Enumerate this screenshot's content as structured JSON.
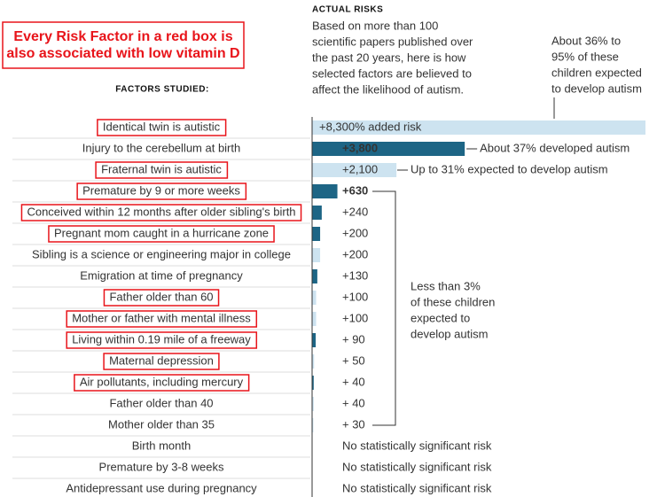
{
  "chart_data": {
    "type": "bar",
    "callout": [
      "Every Risk Factor in a red box is",
      "also associated with low vitamin D"
    ],
    "header": "ACTUAL RISKS",
    "description": [
      "Based on more than 100",
      "scientific papers published over",
      "the past 20 years, here is how",
      "selected factors are believed to",
      "affect the likelihood of autism."
    ],
    "category_header": "FACTORS STUDIED:",
    "categories": [
      "Identical twin is autistic",
      "Injury to the cerebellum at birth",
      "Fraternal twin is autistic",
      "Premature by 9 or more weeks",
      "Conceived within 12 months after older sibling's birth",
      "Pregnant mom caught in a hurricane zone",
      "Sibling is a science or engineering major in college",
      "Emigration at time of pregnancy",
      "Father older than 60",
      "Mother or father with mental illness",
      "Living within 0.19 mile of a freeway",
      "Maternal depression",
      "Air pollutants, including mercury",
      "Father older than 40",
      "Mother older than 35",
      "Birth month",
      "Premature by 3-8 weeks",
      "Antidepressant use during pregnancy"
    ],
    "values": [
      8300,
      3800,
      2100,
      630,
      240,
      200,
      200,
      130,
      100,
      100,
      90,
      50,
      40,
      40,
      30,
      null,
      null,
      null
    ],
    "value_labels": [
      "+8,300% added risk",
      "+3,800",
      "+2,100",
      "+630",
      "+240",
      "+200",
      "+200",
      "+130",
      "+100",
      "+100",
      "+ 90",
      "+ 50",
      "+ 40",
      "+ 40",
      "+ 30",
      "No statistically significant risk",
      "No statistically significant risk",
      "No statistically significant risk"
    ],
    "colors": [
      "#cde3f0",
      "#1d6585",
      "#cde3f0",
      "#1d6585",
      "#1d6585",
      "#1d6585",
      "#cde3f0",
      "#1d6585",
      "#cde3f0",
      "#cde3f0",
      "#1d6585",
      "#cde3f0",
      "#1d6585",
      "#cde3f0",
      "#cde3f0",
      "#cde3f0",
      "#cde3f0",
      "#cde3f0"
    ],
    "highlighted": [
      true,
      false,
      true,
      true,
      true,
      true,
      false,
      false,
      true,
      true,
      true,
      true,
      true,
      false,
      false,
      false,
      false,
      false
    ],
    "xlim": [
      0,
      8300
    ],
    "annotations": [
      {
        "row": 0,
        "lines": [
          "About 36% to",
          "95% of these",
          "children expected",
          "to develop autism"
        ]
      },
      {
        "row": 1,
        "lines": [
          "About 37% developed autism"
        ]
      },
      {
        "row": 2,
        "lines": [
          "Up to 31% expected to develop autism"
        ]
      },
      {
        "row": 3,
        "lines": [
          "Less than 3%",
          "of these children",
          "expected to",
          "develop autism"
        ]
      }
    ]
  }
}
